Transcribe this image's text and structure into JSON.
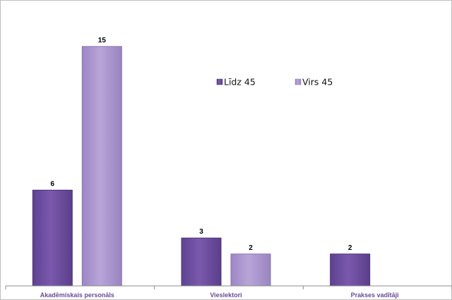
{
  "chart_data": {
    "type": "bar",
    "title": "",
    "xlabel": "",
    "ylabel": "",
    "categories": [
      "Akadēmiskais personāls",
      "Vieslektori",
      "Prakses vadītāji"
    ],
    "series": [
      {
        "name": "Līdz 45",
        "values": [
          6,
          3,
          2
        ],
        "color": "#6b4c9a",
        "color_light": "#8e6cb8",
        "color_edge": "#4e3478"
      },
      {
        "name": "Virs 45",
        "values": [
          15,
          2,
          null
        ],
        "color": "#a993cc",
        "color_light": "#c0aedb",
        "color_edge": "#8a76ad"
      }
    ],
    "data_labels": [
      [
        "6",
        "3",
        "2"
      ],
      [
        "15",
        "2",
        ""
      ]
    ],
    "ylim": [
      0,
      16
    ],
    "grid": false,
    "legend_position": "top-right"
  }
}
